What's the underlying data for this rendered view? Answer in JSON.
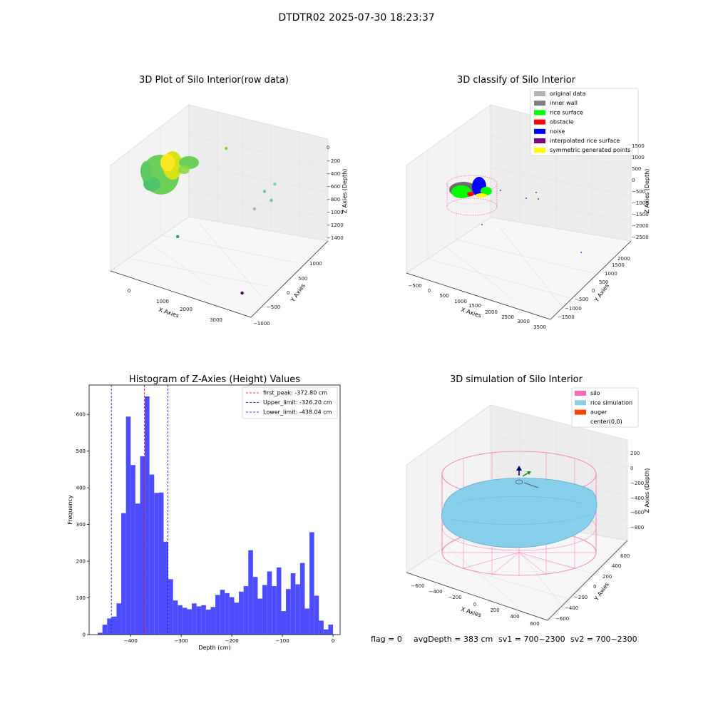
{
  "figure": {
    "suptitle": "DTDTR02 2025-07-30 18:23:37",
    "status_line": {
      "flag": "flag = 0",
      "avg_depth": "avgDepth = 383 cm",
      "sv1": "sv1 = 700~2300",
      "sv2": "sv2 = 700~2300"
    }
  },
  "chart_data": [
    {
      "type": "scatter",
      "projection": "3d",
      "title": "3D Plot of Silo Interior(row data)",
      "xlabel": "X Axies",
      "ylabel": "Y Axies",
      "zlabel": "Z Axies (Depth)",
      "x_ticks": [
        "0",
        "1000",
        "2000",
        "3000"
      ],
      "y_ticks": [
        "1000",
        "500",
        "0",
        "−500",
        "−1000"
      ],
      "z_ticks": [
        "0",
        "−200",
        "−400",
        "−600",
        "−800",
        "−1000",
        "−1200",
        "−1400"
      ],
      "colormap": "viridis",
      "outlier_points": [
        {
          "x": 900,
          "y": 900,
          "z": -220,
          "color": "#7ad151"
        },
        {
          "x": 2600,
          "y": 700,
          "z": -400,
          "color": "#7fd4a0"
        },
        {
          "x": 2500,
          "y": 500,
          "z": -450,
          "color": "#5ec9a8"
        },
        {
          "x": 2600,
          "y": 600,
          "z": -600,
          "color": "#5ec9a8"
        },
        {
          "x": 2300,
          "y": 400,
          "z": -700,
          "color": "#aab4b0"
        },
        {
          "x": 700,
          "y": -300,
          "z": -1100,
          "color": "#1f9e89"
        },
        {
          "x": 3100,
          "y": -700,
          "z": -1400,
          "color": "#440154"
        }
      ]
    },
    {
      "type": "scatter",
      "projection": "3d",
      "title": "3D classify of Silo Interior",
      "xlabel": "X Axies",
      "ylabel": "Y Axies",
      "zlabel": "Z Axies (Depth)",
      "x_ticks": [
        "−500",
        "0",
        "500",
        "1000",
        "1500",
        "2000",
        "2500",
        "3000",
        "3500"
      ],
      "y_ticks": [
        "2000",
        "1500",
        "1000",
        "500",
        "0",
        "−500",
        "−1000",
        "−1500"
      ],
      "z_ticks": [
        "1500",
        "1000",
        "500",
        "0",
        "−500",
        "−1000",
        "−1500",
        "−2000",
        "−2500"
      ],
      "legend_position": "top-right",
      "legend": [
        {
          "label": "original data",
          "color": "#b0b0b0"
        },
        {
          "label": "inner wall",
          "color": "#808080"
        },
        {
          "label": "rice surface",
          "color": "#00ff00"
        },
        {
          "label": "obstacle",
          "color": "#ff0000"
        },
        {
          "label": "noise",
          "color": "#0000ff"
        },
        {
          "label": "interpolated rice surface",
          "color": "#800080"
        },
        {
          "label": "symmetric generated points",
          "color": "#ffff00"
        }
      ]
    },
    {
      "type": "bar",
      "title": "Histogram of Z-Axies (Height) Values",
      "xlabel": "Depth (cm)",
      "ylabel": "Frequency",
      "xlim": [
        -482,
        14
      ],
      "ylim": [
        0,
        680
      ],
      "x_ticks": [
        -400,
        -300,
        -200,
        -100,
        0
      ],
      "y_ticks": [
        0,
        100,
        200,
        300,
        400,
        500,
        600
      ],
      "bar_color": "#4d4dff",
      "bin_width": 9.3,
      "bin_start": -465.0,
      "counts": [
        5,
        27,
        44,
        49,
        85,
        331,
        594,
        462,
        357,
        486,
        649,
        436,
        386,
        387,
        253,
        151,
        93,
        80,
        73,
        69,
        85,
        77,
        80,
        68,
        75,
        108,
        122,
        113,
        102,
        87,
        117,
        132,
        230,
        157,
        98,
        135,
        172,
        132,
        183,
        64,
        124,
        167,
        137,
        195,
        71,
        279,
        106,
        38,
        14,
        27
      ],
      "vlines": [
        {
          "x": -372.8,
          "color": "#ff0000",
          "label": "first_peak: -372.80 cm"
        },
        {
          "x": -326.2,
          "color": "#0000ff",
          "label": "Upper_limit: -326.20 cm"
        },
        {
          "x": -438.04,
          "color": "#0000ff",
          "label": "Lower_limit: -438.04 cm"
        }
      ],
      "legend_position": "top-right"
    },
    {
      "type": "scatter",
      "projection": "3d",
      "title": "3D simulation of Silo Interior",
      "xlabel": "X Axies",
      "ylabel": "Y Axies",
      "zlabel": "Z Axies (Depth)",
      "x_ticks": [
        "−600",
        "−400",
        "−200",
        "0",
        "200",
        "400",
        "600"
      ],
      "y_ticks": [
        "600",
        "400",
        "200",
        "0",
        "−200",
        "−400",
        "−600"
      ],
      "z_ticks": [
        "200",
        "0",
        "−200",
        "−400",
        "−600",
        "−800"
      ],
      "legend_position": "top-right",
      "legend": [
        {
          "label": "silo",
          "color": "#ff69b4"
        },
        {
          "label": "rice simulation",
          "color": "#87ceeb"
        },
        {
          "label": "auger",
          "color": "#ff4500"
        },
        {
          "label": "center(0,0)",
          "color": "#ffffff"
        }
      ]
    }
  ]
}
